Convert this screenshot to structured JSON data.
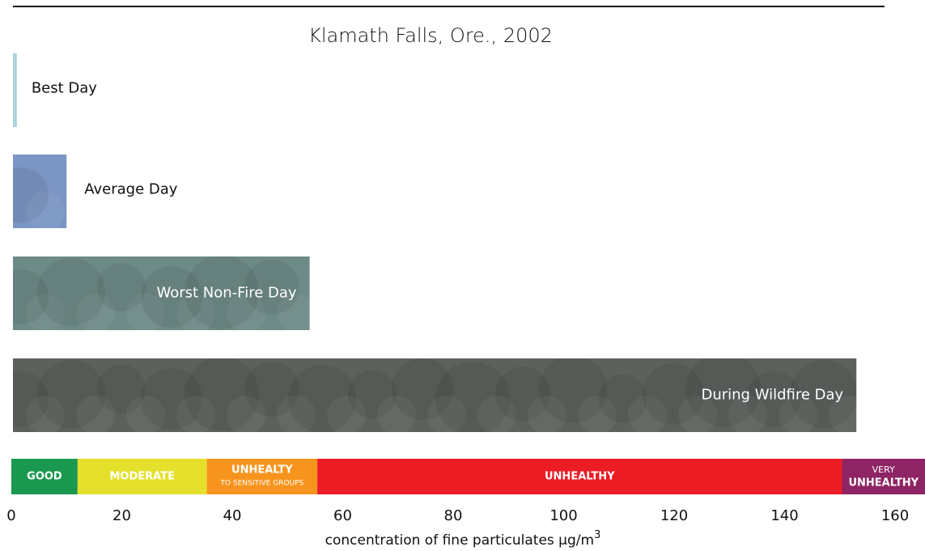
{
  "chart_data": {
    "type": "bar",
    "orientation": "horizontal",
    "title": "Klamath Falls, Ore., 2002",
    "categories": [
      "Best Day",
      "Average Day",
      "Worst Non-Fire Day",
      "During Wildfire Day"
    ],
    "values": [
      1,
      10,
      54,
      153
    ],
    "colors": [
      "#a9d5d9",
      "#7b96c4",
      "#6e8a87",
      "#5d615d"
    ],
    "xlim": [
      0,
      160
    ],
    "xticks": [
      0,
      20,
      40,
      60,
      80,
      100,
      120,
      140,
      160
    ],
    "x_label": {
      "text": "concentration of fine particulates µg/m",
      "superscript": "3"
    },
    "bands": [
      {
        "from": 0,
        "to": 12,
        "color": "#1a9850",
        "label": [
          "GOOD"
        ]
      },
      {
        "from": 12,
        "to": 35.4,
        "color": "#e5e02c",
        "label": [
          "MODERATE"
        ]
      },
      {
        "from": 35.4,
        "to": 55.4,
        "color": "#f7941d",
        "label": [
          "UNHEALTY",
          "TO SENSITIVE GROUPS"
        ]
      },
      {
        "from": 55.4,
        "to": 150.4,
        "color": "#ec1c24",
        "label": [
          "UNHEALTHY"
        ]
      },
      {
        "from": 150.4,
        "to": 250.4,
        "color": "#8e2463",
        "label": [
          "VERY",
          "UNHEALTHY"
        ]
      }
    ]
  }
}
